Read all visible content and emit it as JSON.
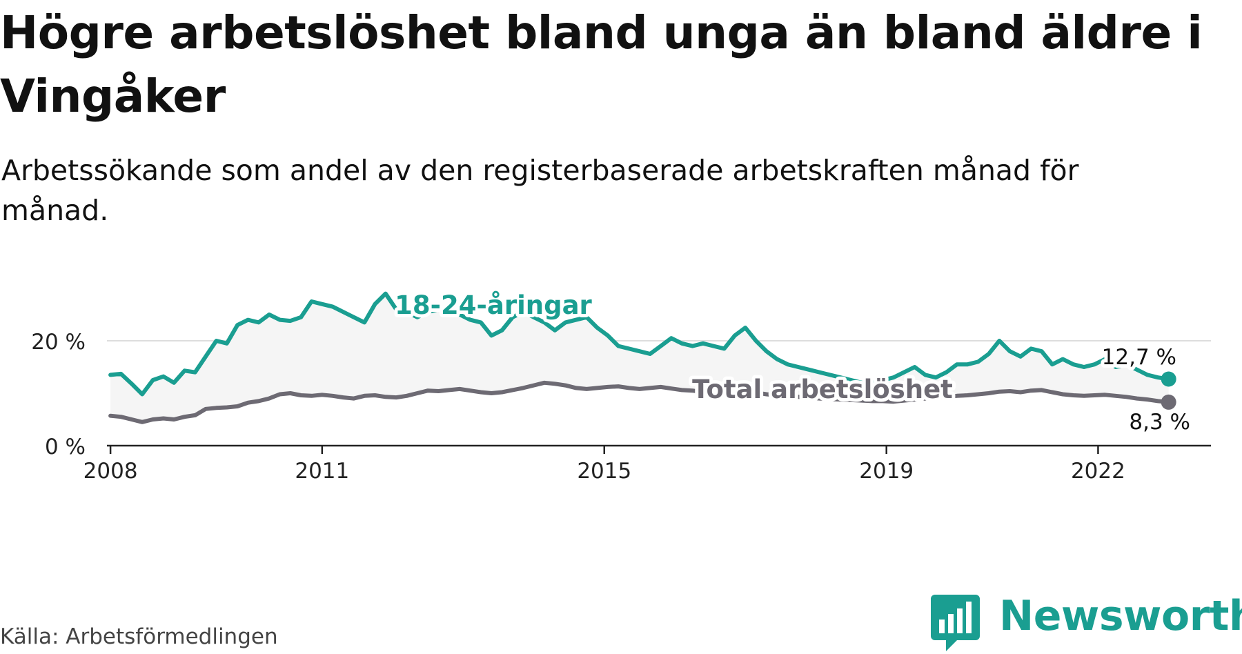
{
  "title": "Högre arbetslöshet bland unga än bland äldre i Vingåker",
  "subtitle": "Arbetssökande som andel av den registerbaserade arbetskraften månad för månad.",
  "source": "Källa: Arbetsförmedlingen",
  "brand": "Newsworthy",
  "colors": {
    "youth": "#1a9e91",
    "total": "#6d6a73",
    "area": "#f5f5f5",
    "grid": "#dddddd",
    "axis": "#222222"
  },
  "chart_data": {
    "type": "line",
    "title": "Högre arbetslöshet bland unga än bland äldre i Vingåker",
    "xlabel": "",
    "ylabel": "",
    "ylim": [
      0,
      30
    ],
    "xlim": [
      2007.95,
      2023.6
    ],
    "yticks": [
      0,
      20
    ],
    "ytick_labels": [
      "0 %",
      "20 %"
    ],
    "xticks": [
      2008,
      2011,
      2015,
      2019,
      2022
    ],
    "xtick_labels": [
      "2008",
      "2011",
      "2015",
      "2019",
      "2022"
    ],
    "grid": true,
    "shade_between_series": true,
    "series": [
      {
        "name": "18-24-åringar",
        "label": "18-24-åringar",
        "end_label": "12,7 %",
        "x": [
          2008.0,
          2008.15,
          2008.3,
          2008.45,
          2008.6,
          2008.75,
          2008.9,
          2009.05,
          2009.2,
          2009.35,
          2009.5,
          2009.65,
          2009.8,
          2009.95,
          2010.1,
          2010.25,
          2010.4,
          2010.55,
          2010.7,
          2010.85,
          2011.0,
          2011.15,
          2011.3,
          2011.45,
          2011.6,
          2011.75,
          2011.9,
          2012.05,
          2012.2,
          2012.35,
          2012.5,
          2012.65,
          2012.8,
          2012.95,
          2013.1,
          2013.25,
          2013.4,
          2013.55,
          2013.7,
          2013.85,
          2014.0,
          2014.15,
          2014.3,
          2014.45,
          2014.6,
          2014.75,
          2014.9,
          2015.05,
          2015.2,
          2015.35,
          2015.5,
          2015.65,
          2015.8,
          2015.95,
          2016.1,
          2016.25,
          2016.4,
          2016.55,
          2016.7,
          2016.85,
          2017.0,
          2017.15,
          2017.3,
          2017.45,
          2017.6,
          2017.75,
          2017.9,
          2018.05,
          2018.2,
          2018.35,
          2018.5,
          2018.65,
          2018.8,
          2018.95,
          2019.1,
          2019.25,
          2019.4,
          2019.55,
          2019.7,
          2019.85,
          2020.0,
          2020.15,
          2020.3,
          2020.45,
          2020.6,
          2020.75,
          2020.9,
          2021.05,
          2021.2,
          2021.35,
          2021.5,
          2021.65,
          2021.8,
          2021.95,
          2022.1,
          2022.25,
          2022.4,
          2022.55,
          2022.7,
          2022.85,
          2023.0
        ],
        "values": [
          13.5,
          13.7,
          11.8,
          9.8,
          12.5,
          13.2,
          12.0,
          14.3,
          14.0,
          17.0,
          20.0,
          19.5,
          23.0,
          24.0,
          23.5,
          25.0,
          24.0,
          23.8,
          24.5,
          27.5,
          27.0,
          26.5,
          25.5,
          24.5,
          23.5,
          27.0,
          29.0,
          26.0,
          25.5,
          24.5,
          25.5,
          26.0,
          26.5,
          25.0,
          24.0,
          23.5,
          21.0,
          22.0,
          24.5,
          25.5,
          24.5,
          23.5,
          22.0,
          23.5,
          24.0,
          24.5,
          22.5,
          21.0,
          19.0,
          18.5,
          18.0,
          17.5,
          19.0,
          20.5,
          19.5,
          19.0,
          19.5,
          19.0,
          18.5,
          21.0,
          22.5,
          20.0,
          18.0,
          16.5,
          15.5,
          15.0,
          14.5,
          14.0,
          13.5,
          13.0,
          12.5,
          12.0,
          12.0,
          12.5,
          13.0,
          14.0,
          15.0,
          13.5,
          13.0,
          14.0,
          15.5,
          15.5,
          16.0,
          17.5,
          20.0,
          18.0,
          17.0,
          18.5,
          18.0,
          15.5,
          16.5,
          15.5,
          15.0,
          15.5,
          16.5,
          15.0,
          15.5,
          14.5,
          13.5,
          13.0,
          12.7
        ]
      },
      {
        "name": "Total arbetslöshet",
        "label": "Total arbetslöshet",
        "end_label": "8,3 %",
        "x": [
          2008.0,
          2008.15,
          2008.3,
          2008.45,
          2008.6,
          2008.75,
          2008.9,
          2009.05,
          2009.2,
          2009.35,
          2009.5,
          2009.65,
          2009.8,
          2009.95,
          2010.1,
          2010.25,
          2010.4,
          2010.55,
          2010.7,
          2010.85,
          2011.0,
          2011.15,
          2011.3,
          2011.45,
          2011.6,
          2011.75,
          2011.9,
          2012.05,
          2012.2,
          2012.35,
          2012.5,
          2012.65,
          2012.8,
          2012.95,
          2013.1,
          2013.25,
          2013.4,
          2013.55,
          2013.7,
          2013.85,
          2014.0,
          2014.15,
          2014.3,
          2014.45,
          2014.6,
          2014.75,
          2014.9,
          2015.05,
          2015.2,
          2015.35,
          2015.5,
          2015.65,
          2015.8,
          2015.95,
          2016.1,
          2016.25,
          2016.4,
          2016.55,
          2016.7,
          2016.85,
          2017.0,
          2017.15,
          2017.3,
          2017.45,
          2017.6,
          2017.75,
          2017.9,
          2018.05,
          2018.2,
          2018.35,
          2018.5,
          2018.65,
          2018.8,
          2018.95,
          2019.1,
          2019.25,
          2019.4,
          2019.55,
          2019.7,
          2019.85,
          2020.0,
          2020.15,
          2020.3,
          2020.45,
          2020.6,
          2020.75,
          2020.9,
          2021.05,
          2021.2,
          2021.35,
          2021.5,
          2021.65,
          2021.8,
          2021.95,
          2022.1,
          2022.25,
          2022.4,
          2022.55,
          2022.7,
          2022.85,
          2023.0
        ],
        "values": [
          5.7,
          5.5,
          5.0,
          4.5,
          5.0,
          5.2,
          5.0,
          5.5,
          5.8,
          7.0,
          7.2,
          7.3,
          7.5,
          8.2,
          8.5,
          9.0,
          9.8,
          10.0,
          9.6,
          9.5,
          9.7,
          9.5,
          9.2,
          9.0,
          9.5,
          9.6,
          9.3,
          9.2,
          9.5,
          10.0,
          10.5,
          10.4,
          10.6,
          10.8,
          10.5,
          10.2,
          10.0,
          10.2,
          10.6,
          11.0,
          11.5,
          12.0,
          11.8,
          11.5,
          11.0,
          10.8,
          11.0,
          11.2,
          11.3,
          11.0,
          10.8,
          11.0,
          11.2,
          10.9,
          10.6,
          10.5,
          10.2,
          10.0,
          9.9,
          10.0,
          10.3,
          10.1,
          9.8,
          9.6,
          9.4,
          9.3,
          9.2,
          9.0,
          8.9,
          8.8,
          8.7,
          8.6,
          8.5,
          8.5,
          8.4,
          8.6,
          8.8,
          9.0,
          9.2,
          9.3,
          9.5,
          9.6,
          9.8,
          10.0,
          10.3,
          10.4,
          10.2,
          10.5,
          10.6,
          10.2,
          9.8,
          9.6,
          9.5,
          9.6,
          9.7,
          9.5,
          9.3,
          9.0,
          8.8,
          8.5,
          8.3
        ]
      }
    ]
  }
}
